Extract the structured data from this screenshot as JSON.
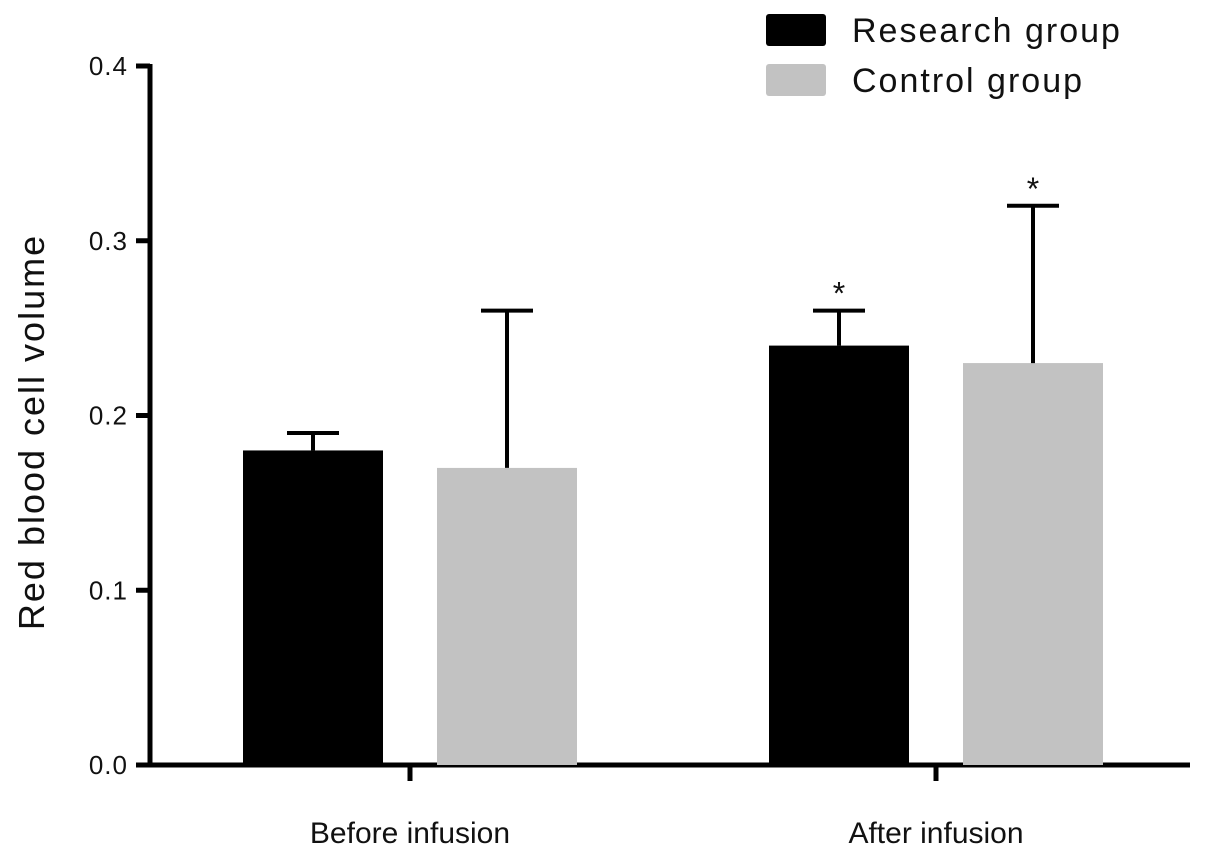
{
  "chart_data": {
    "type": "bar",
    "categories": [
      "Before infusion",
      "After infusion"
    ],
    "series": [
      {
        "name": "Research group",
        "color": "#000000",
        "values": [
          0.18,
          0.24
        ],
        "error_upper": [
          0.19,
          0.26
        ],
        "annotations": [
          "",
          "*"
        ]
      },
      {
        "name": "Control group",
        "color": "#c2c2c2",
        "values": [
          0.17,
          0.23
        ],
        "error_upper": [
          0.26,
          0.32
        ],
        "annotations": [
          "",
          "*"
        ]
      }
    ],
    "title": "",
    "xlabel": "",
    "ylabel": "Red blood cell volume",
    "ylim": [
      0,
      0.4
    ],
    "yticks": [
      "0.0",
      "0.1",
      "0.2",
      "0.3",
      "0.4"
    ],
    "grid": false,
    "legend_position": "top-right"
  }
}
